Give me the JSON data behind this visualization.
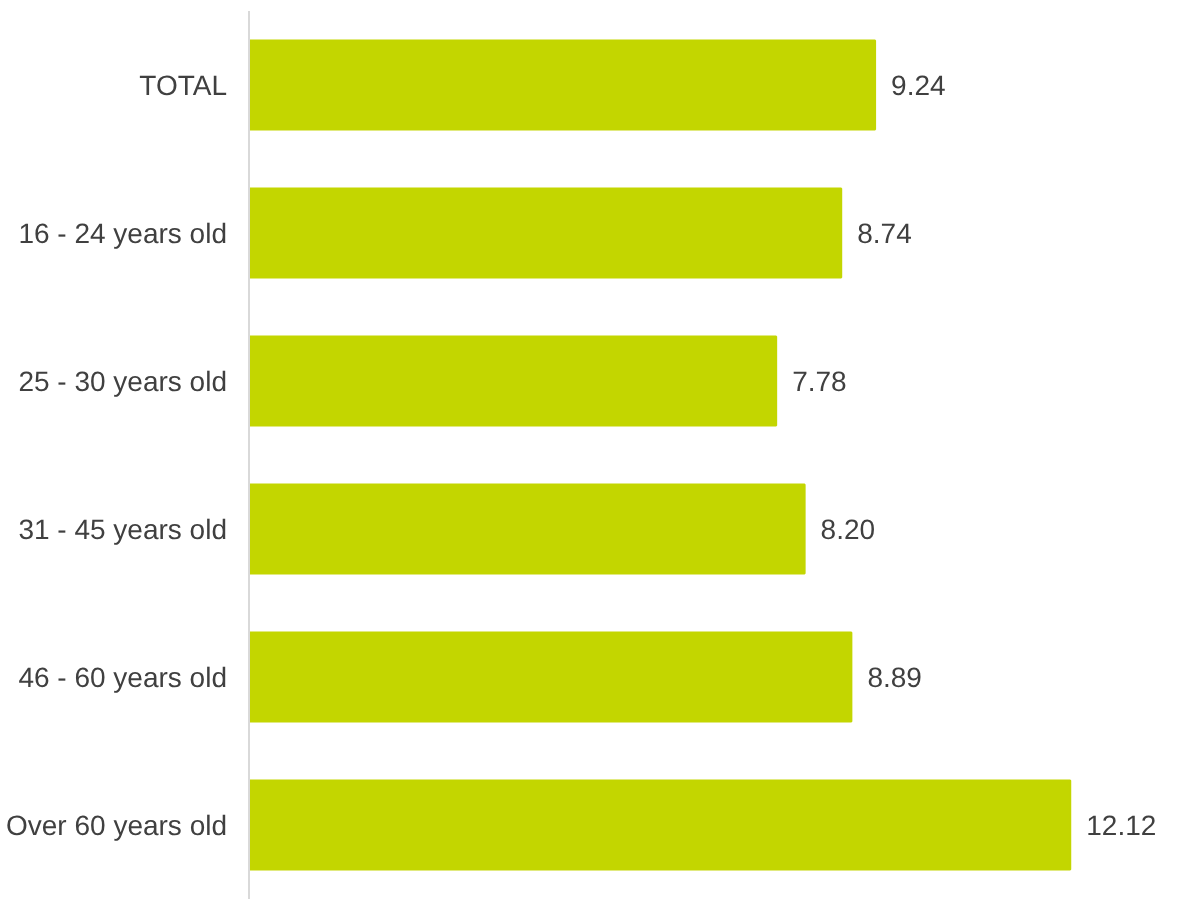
{
  "chart_data": {
    "type": "bar",
    "orientation": "horizontal",
    "categories": [
      "TOTAL",
      "16 - 24 years old",
      "25 - 30 years old",
      "31 - 45 years old",
      "46 - 60 years old",
      "Over 60 years old"
    ],
    "values": [
      9.24,
      8.74,
      7.78,
      8.2,
      8.89,
      12.12
    ],
    "value_labels": [
      "9.24",
      "8.74",
      "7.78",
      "8.20",
      "8.89",
      "12.12"
    ],
    "color": "#c3d600",
    "tick_labels": "y",
    "grid": false
  }
}
